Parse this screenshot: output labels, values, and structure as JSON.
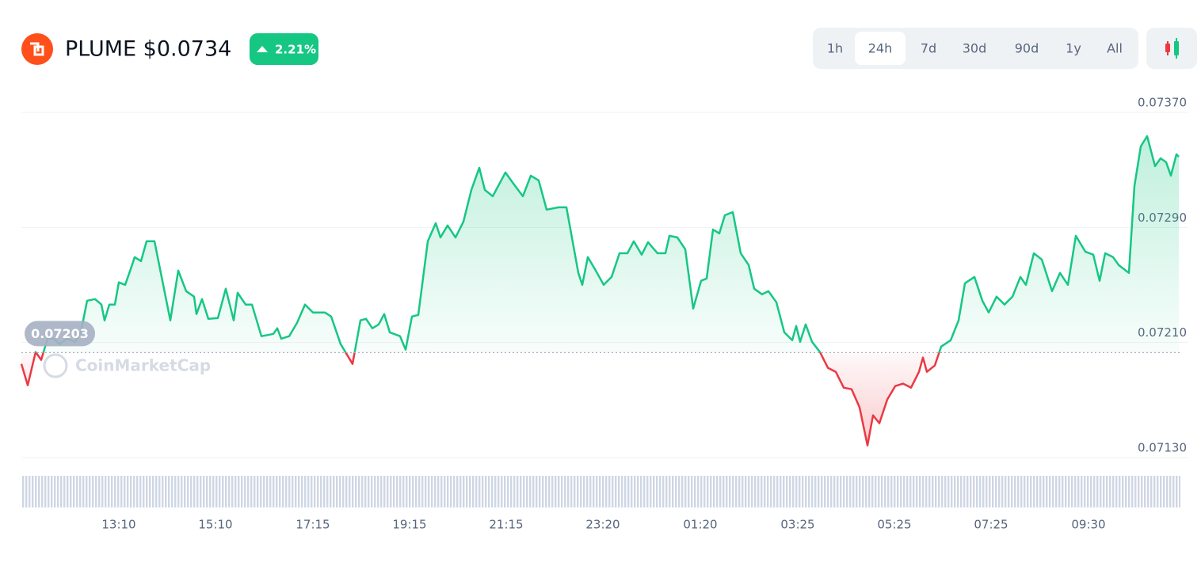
{
  "chart_data": {
    "type": "line",
    "title": "PLUME $0.0734",
    "change": "2.21%",
    "ranges": [
      "1h",
      "24h",
      "7d",
      "30d",
      "90d",
      "1y",
      "All"
    ],
    "active_range": 1,
    "watermark": "CoinMarketCap",
    "baseline": 0.07203,
    "ylim": [
      0.0713,
      0.0737
    ],
    "yticks": [
      {
        "value": 0.0737,
        "label": "0.07370"
      },
      {
        "value": 0.0729,
        "label": "0.07290"
      },
      {
        "value": 0.0721,
        "label": "0.07210"
      },
      {
        "value": 0.0713,
        "label": "0.07130"
      }
    ],
    "xlim": [
      0,
      1461
    ],
    "xticks": [
      {
        "value": 123,
        "label": "13:10"
      },
      {
        "value": 245,
        "label": "15:10"
      },
      {
        "value": 368,
        "label": "17:15"
      },
      {
        "value": 490,
        "label": "19:15"
      },
      {
        "value": 612,
        "label": "21:15"
      },
      {
        "value": 734,
        "label": "23:20"
      },
      {
        "value": 857,
        "label": "01:20"
      },
      {
        "value": 980,
        "label": "03:25"
      },
      {
        "value": 1102,
        "label": "05:25"
      },
      {
        "value": 1224,
        "label": "07:25"
      },
      {
        "value": 1347,
        "label": "09:30"
      }
    ],
    "grid": true,
    "x": [
      0,
      8,
      18,
      25,
      33,
      41,
      48,
      58,
      68,
      75,
      83,
      93,
      101,
      105,
      111,
      118,
      123,
      131,
      138,
      143,
      151,
      158,
      168,
      178,
      188,
      198,
      208,
      218,
      221,
      228,
      236,
      248,
      258,
      268,
      273,
      283,
      291,
      303,
      318,
      323,
      328,
      338,
      348,
      358,
      368,
      383,
      391,
      403,
      418,
      428,
      435,
      443,
      451,
      458,
      465,
      478,
      485,
      493,
      501,
      513,
      523,
      529,
      538,
      548,
      558,
      568,
      578,
      585,
      595,
      611,
      621,
      633,
      643,
      653,
      663,
      678,
      688,
      703,
      708,
      715,
      725,
      735,
      745,
      755,
      765,
      773,
      783,
      791,
      803,
      813,
      818,
      828,
      838,
      848,
      858,
      865,
      873,
      881,
      888,
      898,
      908,
      918,
      925,
      935,
      943,
      953,
      963,
      973,
      978,
      983,
      990,
      998,
      1008,
      1018,
      1028,
      1038,
      1048,
      1058,
      1068,
      1075,
      1083,
      1093,
      1103,
      1113,
      1123,
      1133,
      1138,
      1143,
      1153,
      1161,
      1173,
      1183,
      1191,
      1203,
      1213,
      1221,
      1231,
      1241,
      1251,
      1261,
      1268,
      1278,
      1288,
      1301,
      1311,
      1321,
      1331,
      1343,
      1353,
      1361,
      1368,
      1378,
      1385,
      1398,
      1405,
      1413,
      1421,
      1431,
      1438,
      1445,
      1451,
      1458,
      1461
    ],
    "series": [
      {
        "color": "#16c784",
        "down_color": "#ea3943",
        "values": [
          0.071951,
          0.071803,
          0.072034,
          0.071979,
          0.072127,
          0.072127,
          0.072089,
          0.072127,
          0.072105,
          0.072171,
          0.072391,
          0.072402,
          0.072364,
          0.072254,
          0.072364,
          0.072364,
          0.072518,
          0.072501,
          0.072611,
          0.072694,
          0.072666,
          0.072804,
          0.072804,
          0.072529,
          0.072254,
          0.0726,
          0.072457,
          0.072419,
          0.072298,
          0.072402,
          0.072265,
          0.07227,
          0.072474,
          0.072254,
          0.072446,
          0.072364,
          0.072364,
          0.072144,
          0.07216,
          0.072199,
          0.072127,
          0.072144,
          0.072237,
          0.072364,
          0.072309,
          0.072309,
          0.072281,
          0.072089,
          0.071951,
          0.072254,
          0.072265,
          0.072199,
          0.072226,
          0.072298,
          0.072171,
          0.072144,
          0.07205,
          0.072281,
          0.072292,
          0.072804,
          0.07293,
          0.072831,
          0.072914,
          0.072831,
          0.072941,
          0.073161,
          0.073315,
          0.073161,
          0.073117,
          0.073282,
          0.073205,
          0.073117,
          0.07326,
          0.073227,
          0.073024,
          0.07304,
          0.07304,
          0.072584,
          0.072501,
          0.072694,
          0.0726,
          0.072501,
          0.072556,
          0.072721,
          0.072721,
          0.072804,
          0.072711,
          0.072798,
          0.072721,
          0.072721,
          0.072842,
          0.072831,
          0.072748,
          0.072336,
          0.072529,
          0.072545,
          0.072886,
          0.072859,
          0.072985,
          0.073007,
          0.072721,
          0.072639,
          0.072474,
          0.072435,
          0.072457,
          0.07238,
          0.072171,
          0.072116,
          0.072215,
          0.072105,
          0.072226,
          0.072105,
          0.072034,
          0.071924,
          0.071896,
          0.071786,
          0.071775,
          0.071649,
          0.071385,
          0.071594,
          0.071539,
          0.071704,
          0.071797,
          0.071814,
          0.071786,
          0.071896,
          0.071995,
          0.071896,
          0.07194,
          0.072072,
          0.072116,
          0.072254,
          0.072512,
          0.072556,
          0.072391,
          0.072309,
          0.072419,
          0.072364,
          0.072419,
          0.072556,
          0.072501,
          0.072721,
          0.072677,
          0.072457,
          0.072584,
          0.072501,
          0.072842,
          0.072732,
          0.072711,
          0.072529,
          0.072721,
          0.072694,
          0.072639,
          0.072584,
          0.073189,
          0.073464,
          0.073535,
          0.073326,
          0.073381,
          0.073354,
          0.073261,
          0.073409,
          0.073392
        ]
      }
    ]
  }
}
